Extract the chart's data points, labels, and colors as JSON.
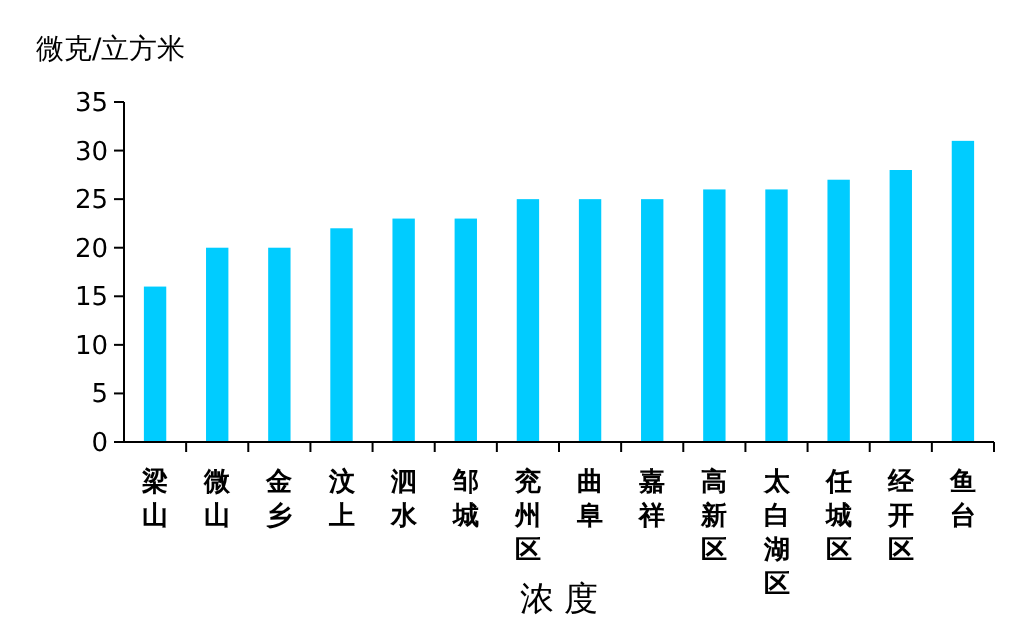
{
  "chart_data": {
    "type": "bar",
    "ylabel": "微克/立方米",
    "xlabel": "浓 度",
    "categories": [
      "梁山",
      "微山",
      "金乡",
      "汶上",
      "泗水",
      "邹城",
      "兖州区",
      "曲阜",
      "嘉祥",
      "高新区",
      "太白湖区",
      "任城区",
      "经开区",
      "鱼台"
    ],
    "values": [
      16,
      20,
      20,
      22,
      23,
      23,
      25,
      25,
      25,
      26,
      26,
      27,
      28,
      31
    ],
    "color": "#00ccff",
    "ylim": [
      0,
      35
    ],
    "yticks": [
      0,
      5,
      10,
      15,
      20,
      25,
      30,
      35
    ],
    "grid": false
  }
}
